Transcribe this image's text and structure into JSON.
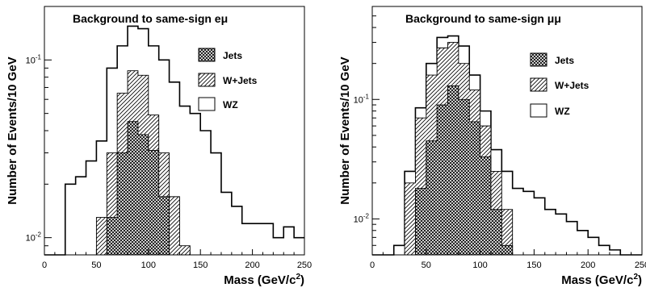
{
  "chart_data": [
    {
      "type": "bar",
      "subtype": "stacked-histogram",
      "title": "Background to same-sign eμ",
      "xlabel": "Mass (GeV/c²)",
      "xlabel_parts": [
        "Mass (GeV/c",
        "2",
        ")"
      ],
      "ylabel": "Number of Events/10 GeV",
      "y_scale": "log",
      "xlim": [
        0,
        250
      ],
      "ylim": [
        0.008,
        0.2
      ],
      "x_ticks": [
        0,
        50,
        100,
        150,
        200,
        250
      ],
      "x_tick_labels": [
        "0",
        "50",
        "100",
        "150",
        "200",
        "250"
      ],
      "y_ticks": [
        {
          "value": 0.01,
          "base": "10",
          "exp": "-2"
        },
        {
          "value": 0.1,
          "base": "10",
          "exp": "-1"
        }
      ],
      "bin_width": 10,
      "bin_edges_start": 0,
      "legend_position": "top-right",
      "series": [
        {
          "name": "Jets",
          "style": "crosshatch",
          "values": [
            0,
            0,
            0,
            0,
            0,
            0,
            0.013,
            0.03,
            0.045,
            0.038,
            0.031,
            0.017,
            0.008,
            0,
            0,
            0,
            0,
            0,
            0,
            0,
            0,
            0,
            0,
            0,
            0
          ]
        },
        {
          "name": "W+Jets",
          "style": "diagonal",
          "values": [
            0,
            0,
            0,
            0,
            0,
            0.013,
            0.03,
            0.065,
            0.087,
            0.082,
            0.049,
            0.03,
            0.017,
            0.009,
            0,
            0,
            0,
            0,
            0,
            0,
            0,
            0,
            0,
            0,
            0
          ]
        },
        {
          "name": "WZ",
          "style": "open",
          "values": [
            0,
            0,
            0.02,
            0.022,
            0.027,
            0.035,
            0.09,
            0.12,
            0.155,
            0.15,
            0.12,
            0.1,
            0.075,
            0.055,
            0.05,
            0.04,
            0.03,
            0.018,
            0.015,
            0.012,
            0.012,
            0.012,
            0.01,
            0.0115,
            0.01
          ]
        }
      ]
    },
    {
      "type": "bar",
      "subtype": "stacked-histogram",
      "title": "Background to same-sign μμ",
      "xlabel": "Mass (GeV/c²)",
      "xlabel_parts": [
        "Mass (GeV/c",
        "2",
        ")"
      ],
      "ylabel": "Number of Events/10 GeV",
      "y_scale": "log",
      "xlim": [
        0,
        250
      ],
      "ylim": [
        0.005,
        0.6
      ],
      "x_ticks": [
        0,
        50,
        100,
        150,
        200,
        250
      ],
      "x_tick_labels": [
        "0",
        "50",
        "100",
        "150",
        "200",
        "250"
      ],
      "y_ticks": [
        {
          "value": 0.01,
          "base": "10",
          "exp": "-2"
        },
        {
          "value": 0.1,
          "base": "10",
          "exp": "-1"
        }
      ],
      "bin_width": 10,
      "bin_edges_start": 0,
      "legend_position": "top-right",
      "series": [
        {
          "name": "Jets",
          "style": "crosshatch",
          "values": [
            0,
            0,
            0,
            0.005,
            0.018,
            0.045,
            0.09,
            0.13,
            0.1,
            0.065,
            0.033,
            0.012,
            0.006,
            0,
            0,
            0,
            0,
            0,
            0,
            0,
            0,
            0,
            0,
            0,
            0
          ]
        },
        {
          "name": "W+Jets",
          "style": "diagonal",
          "values": [
            0,
            0,
            0,
            0.02,
            0.07,
            0.16,
            0.27,
            0.3,
            0.2,
            0.12,
            0.06,
            0.025,
            0.012,
            0,
            0,
            0,
            0,
            0,
            0,
            0,
            0,
            0,
            0,
            0,
            0
          ]
        },
        {
          "name": "WZ",
          "style": "open",
          "values": [
            0,
            0,
            0.006,
            0.025,
            0.085,
            0.2,
            0.33,
            0.34,
            0.28,
            0.16,
            0.08,
            0.038,
            0.025,
            0.018,
            0.017,
            0.015,
            0.012,
            0.011,
            0.0095,
            0.008,
            0.007,
            0.006,
            0.0055,
            0.005,
            0
          ]
        }
      ]
    }
  ]
}
